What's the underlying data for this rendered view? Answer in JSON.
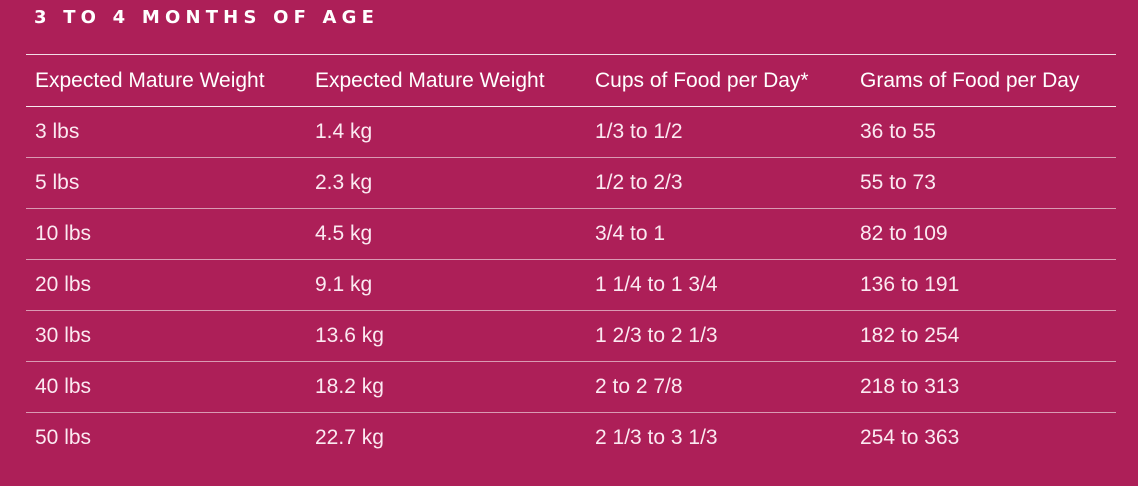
{
  "title": "3 TO 4 MONTHS OF AGE",
  "columns": [
    "Expected Mature Weight",
    "Expected Mature Weight",
    "Cups of Food per Day*",
    "Grams of Food per Day"
  ],
  "rows": [
    [
      "3 lbs",
      "1.4 kg",
      "1/3 to 1/2",
      "36 to 55"
    ],
    [
      "5 lbs",
      "2.3 kg",
      "1/2 to 2/3",
      "55 to 73"
    ],
    [
      "10 lbs",
      "4.5 kg",
      "3/4 to 1",
      "82 to 109"
    ],
    [
      "20 lbs",
      "9.1 kg",
      "1 1/4 to 1 3/4",
      "136 to 191"
    ],
    [
      "30 lbs",
      "13.6 kg",
      "1 2/3 to 2 1/3",
      "182 to 254"
    ],
    [
      "40 lbs",
      "18.2 kg",
      "2 to 2 7/8",
      "218 to 313"
    ],
    [
      "50 lbs",
      "22.7 kg",
      "2 1/3 to 3 1/3",
      "254 to 363"
    ]
  ],
  "colors": {
    "background": "#ad1f58",
    "text": "#ffffff"
  }
}
